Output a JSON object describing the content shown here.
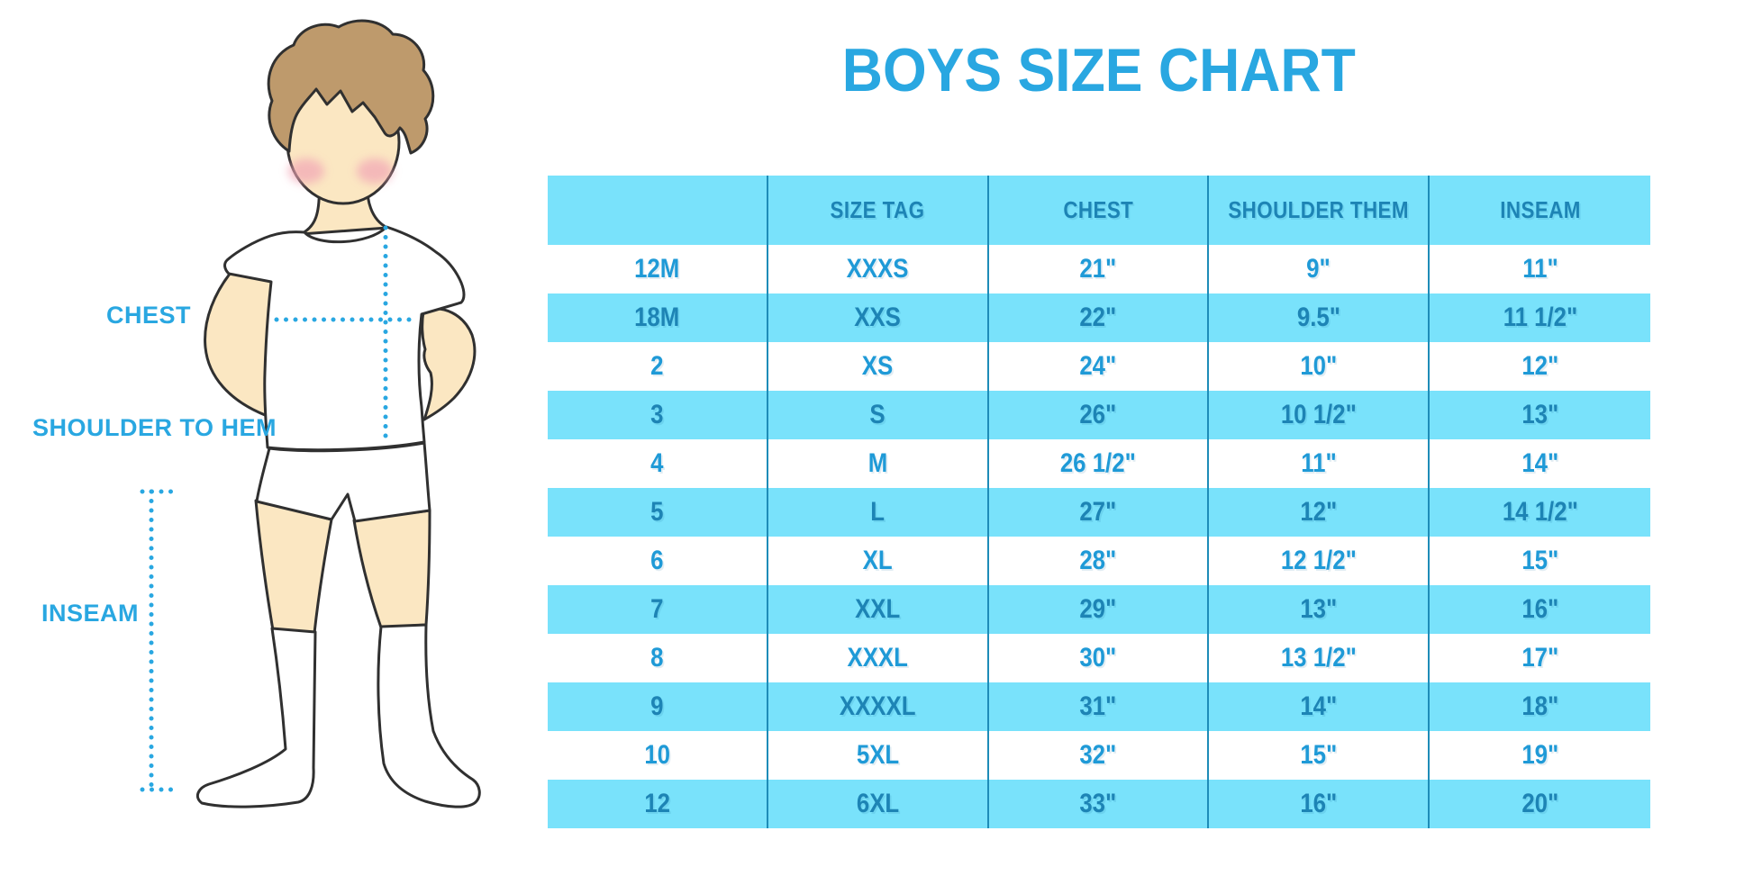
{
  "title": "BOYS SIZE CHART",
  "figure": {
    "labels": {
      "chest": "CHEST",
      "shoulder_to_hem": "SHOULDER TO HEM",
      "inseam": "INSEAM"
    }
  },
  "chart_data": {
    "type": "table",
    "title": "BOYS SIZE CHART",
    "columns": [
      "",
      "SIZE TAG",
      "CHEST",
      "SHOULDER THEM",
      "INSEAM"
    ],
    "rows": [
      [
        "12M",
        "XXXS",
        "21\"",
        "9\"",
        "11\""
      ],
      [
        "18M",
        "XXS",
        "22\"",
        "9.5\"",
        "11 1/2\""
      ],
      [
        "2",
        "XS",
        "24\"",
        "10\"",
        "12\""
      ],
      [
        "3",
        "S",
        "26\"",
        "10 1/2\"",
        "13\""
      ],
      [
        "4",
        "M",
        "26 1/2\"",
        "11\"",
        "14\""
      ],
      [
        "5",
        "L",
        "27\"",
        "12\"",
        "14 1/2\""
      ],
      [
        "6",
        "XL",
        "28\"",
        "12 1/2\"",
        "15\""
      ],
      [
        "7",
        "XXL",
        "29\"",
        "13\"",
        "16\""
      ],
      [
        "8",
        "XXXL",
        "30\"",
        "13 1/2\"",
        "17\""
      ],
      [
        "9",
        "XXXXL",
        "31\"",
        "14\"",
        "18\""
      ],
      [
        "10",
        "5XL",
        "32\"",
        "15\"",
        "19\""
      ],
      [
        "12",
        "6XL",
        "33\"",
        "16\"",
        "20\""
      ]
    ],
    "layout": {
      "striped": true,
      "first_data_row_background": "white",
      "header_background": "cyan-band",
      "gridlines": "vertical-only"
    }
  },
  "colors": {
    "accent_blue": "#29A7E1",
    "band_cyan": "#79E2FB",
    "divider_blue": "#1E8CB8",
    "text_on_white": "#1F9AD7",
    "text_on_cyan": "#1D84B5",
    "skin": "#FBE7C2",
    "hair": "#BE9A6C",
    "outline": "#303030",
    "blush": "#F2A6B6"
  }
}
